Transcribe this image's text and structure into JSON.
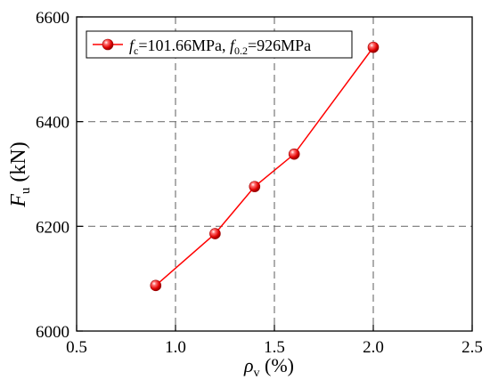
{
  "chart_data": {
    "type": "line",
    "xlabel": {
      "symbol": "ρ",
      "subscript": "v",
      "unit": "(%)"
    },
    "ylabel": {
      "symbol": "F",
      "subscript": "u",
      "unit": "(kN)"
    },
    "xlim": [
      0.5,
      2.5
    ],
    "ylim": [
      6000,
      6600
    ],
    "xticks": [
      "0.5",
      "1.0",
      "1.5",
      "2.0",
      "2.5"
    ],
    "yticks": [
      "6000",
      "6200",
      "6400",
      "6600"
    ],
    "grid": "dashed, major ticks",
    "legend": {
      "placement": "top-left"
    },
    "series": [
      {
        "name": "fc=101.66MPa, f0.2=926MPa",
        "legend_parts": {
          "a_symbol": "f",
          "a_sub": "c",
          "a_rest": "=101.66MPa, ",
          "b_symbol": "f",
          "b_sub": "0.2",
          "b_rest": "=926MPa"
        },
        "color": "#ff0000",
        "marker": "sphere",
        "x": [
          0.9,
          1.2,
          1.4,
          1.6,
          2.0
        ],
        "y": [
          6087,
          6186,
          6276,
          6338,
          6542
        ]
      }
    ]
  }
}
